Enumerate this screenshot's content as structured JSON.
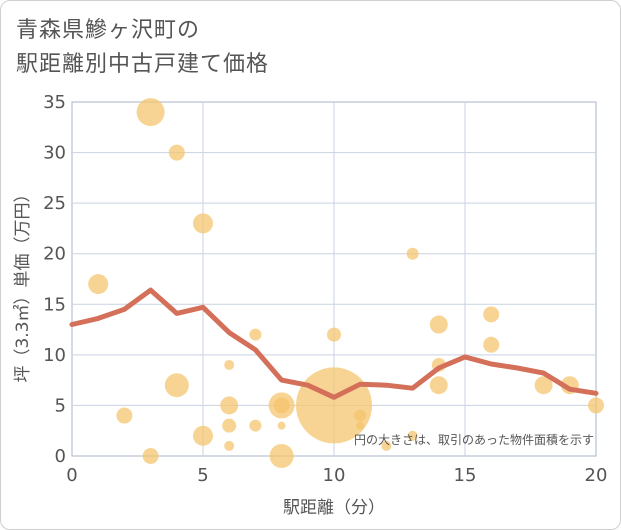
{
  "title": {
    "line1": "青森県鰺ヶ沢町の",
    "line2": "駅距離別中古戸建て価格"
  },
  "chart_data": {
    "type": "scatter",
    "xlabel": "駅距離（分）",
    "ylabel": "坪（3.3㎡）単価（万円）",
    "xlim": [
      0,
      20
    ],
    "ylim": [
      0,
      35
    ],
    "xticks": [
      "0",
      "5",
      "10",
      "15",
      "20"
    ],
    "yticks": [
      "0",
      "5",
      "10",
      "15",
      "20",
      "25",
      "30",
      "35"
    ],
    "xtick_values": [
      0,
      5,
      10,
      15,
      20
    ],
    "ytick_values": [
      0,
      5,
      10,
      15,
      20,
      25,
      30,
      35
    ],
    "grid": true,
    "note": "円の大きさは、取引のあった物件面積を示す",
    "colors": {
      "bubble": "#f5c36b",
      "line": "#d4705a",
      "grid": "#c9d3e3",
      "plot_border": "#a9b5c9"
    },
    "points": [
      {
        "x": 1,
        "y": 17,
        "size": 10
      },
      {
        "x": 2,
        "y": 4,
        "size": 8
      },
      {
        "x": 3,
        "y": 34,
        "size": 14
      },
      {
        "x": 3,
        "y": 0,
        "size": 8
      },
      {
        "x": 4,
        "y": 30,
        "size": 8
      },
      {
        "x": 4,
        "y": 7,
        "size": 12
      },
      {
        "x": 5,
        "y": 23,
        "size": 10
      },
      {
        "x": 5,
        "y": 2,
        "size": 10
      },
      {
        "x": 6,
        "y": 9,
        "size": 5
      },
      {
        "x": 6,
        "y": 5,
        "size": 9
      },
      {
        "x": 6,
        "y": 3,
        "size": 7
      },
      {
        "x": 6,
        "y": 1,
        "size": 5
      },
      {
        "x": 7,
        "y": 12,
        "size": 6
      },
      {
        "x": 7,
        "y": 3,
        "size": 6
      },
      {
        "x": 8,
        "y": 5,
        "size": 13
      },
      {
        "x": 8,
        "y": 5,
        "size": 8
      },
      {
        "x": 8,
        "y": 3,
        "size": 4
      },
      {
        "x": 8,
        "y": 0,
        "size": 12
      },
      {
        "x": 10,
        "y": 12,
        "size": 7
      },
      {
        "x": 10,
        "y": 5,
        "size": 38
      },
      {
        "x": 11,
        "y": 4,
        "size": 6
      },
      {
        "x": 11,
        "y": 3,
        "size": 4
      },
      {
        "x": 12,
        "y": 1,
        "size": 5
      },
      {
        "x": 13,
        "y": 20,
        "size": 6
      },
      {
        "x": 13,
        "y": 2,
        "size": 5
      },
      {
        "x": 14,
        "y": 13,
        "size": 9
      },
      {
        "x": 14,
        "y": 9,
        "size": 7
      },
      {
        "x": 14,
        "y": 7,
        "size": 9
      },
      {
        "x": 16,
        "y": 14,
        "size": 8
      },
      {
        "x": 16,
        "y": 11,
        "size": 8
      },
      {
        "x": 18,
        "y": 7,
        "size": 9
      },
      {
        "x": 19,
        "y": 7,
        "size": 9
      },
      {
        "x": 20,
        "y": 5,
        "size": 8
      }
    ],
    "line": {
      "x": [
        0,
        1,
        2,
        3,
        4,
        5,
        6,
        7,
        8,
        9,
        10,
        11,
        12,
        13,
        14,
        15,
        16,
        17,
        18,
        19,
        20
      ],
      "y": [
        13.0,
        13.6,
        14.5,
        16.4,
        14.1,
        14.7,
        12.2,
        10.5,
        7.5,
        7.0,
        5.8,
        7.1,
        7.0,
        6.7,
        8.7,
        9.8,
        9.1,
        8.7,
        8.2,
        6.6,
        6.2
      ]
    }
  }
}
